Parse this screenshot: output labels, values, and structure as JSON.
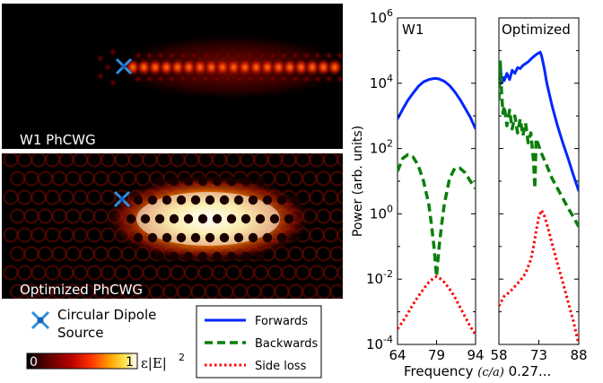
{
  "field_maps": [
    {
      "label": "W1 PhCWG"
    },
    {
      "label": "Optimized PhCWG"
    }
  ],
  "source_legend": {
    "line1": "Circular Dipole",
    "line2": "Source"
  },
  "colorbar": {
    "min": "0",
    "max": "1",
    "label": "ε|E|",
    "exponent": "2",
    "colors": [
      "#000000",
      "#5a0000",
      "#b80000",
      "#ff3300",
      "#ffa000",
      "#ffe24a",
      "#ffffff"
    ]
  },
  "colors": {
    "forwards": "#0026ff",
    "backwards": "#0a7f0a",
    "side_loss": "#ff0000",
    "source": "#2d8fe0"
  },
  "chart_data": [
    {
      "type": "line",
      "title": "W1",
      "ylabel": "Power (arb. units)",
      "yscale": "log",
      "ylim": [
        0.0001,
        1000000
      ],
      "xlim": [
        64,
        94
      ],
      "xticks": [
        "64",
        "79",
        "94"
      ],
      "series": [
        {
          "name": "Forwards",
          "style": "solid",
          "x": [
            64,
            66,
            68,
            70,
            72,
            74,
            76,
            78,
            79,
            80,
            82,
            84,
            86,
            88,
            90,
            92,
            94
          ],
          "y": [
            800,
            1600,
            3000,
            5000,
            8000,
            11000,
            13000,
            14000,
            14000,
            13500,
            11500,
            8500,
            5500,
            3200,
            1700,
            900,
            400
          ]
        },
        {
          "name": "Backwards",
          "style": "dashed",
          "x": [
            64,
            66,
            68,
            70,
            72,
            74,
            76,
            77,
            78,
            78.6,
            79,
            79.4,
            80,
            81,
            82,
            84,
            86,
            88,
            90,
            92,
            94
          ],
          "y": [
            20,
            50,
            65,
            55,
            30,
            10,
            2,
            0.5,
            0.1,
            0.03,
            0.012,
            0.03,
            0.1,
            0.5,
            2,
            12,
            25,
            25,
            18,
            10,
            6
          ]
        },
        {
          "name": "Side loss",
          "style": "dotted",
          "x": [
            64,
            66,
            68,
            70,
            72,
            74,
            76,
            78,
            79,
            80,
            82,
            84,
            86,
            88,
            90,
            92,
            94
          ],
          "y": [
            0.0003,
            0.0005,
            0.0009,
            0.0017,
            0.003,
            0.005,
            0.008,
            0.011,
            0.012,
            0.011,
            0.008,
            0.005,
            0.0028,
            0.0014,
            0.0007,
            0.00035,
            0.0002
          ]
        }
      ]
    },
    {
      "type": "line",
      "title": "Optimized",
      "yscale": "log",
      "ylim": [
        0.0001,
        1000000
      ],
      "xlim": [
        58,
        88
      ],
      "xticks": [
        "58",
        "73",
        "88"
      ],
      "series": [
        {
          "name": "Forwards",
          "style": "solid",
          "x": [
            58,
            58.5,
            59,
            59.5,
            60,
            61,
            62,
            63,
            64,
            65,
            66,
            67,
            68,
            69,
            70,
            71,
            72,
            73,
            73.5,
            74,
            75,
            76,
            78,
            80,
            82,
            84,
            86,
            88
          ],
          "y": [
            15000,
            40000,
            10000,
            15000,
            12000,
            20000,
            13000,
            25000,
            20000,
            30000,
            28000,
            35000,
            40000,
            45000,
            55000,
            65000,
            75000,
            85000,
            90000,
            70000,
            30000,
            10000,
            2000,
            500,
            150,
            50,
            15,
            5
          ]
        },
        {
          "name": "Backwards",
          "style": "dashed",
          "x": [
            58,
            58.5,
            59,
            59.5,
            60,
            61,
            62,
            63,
            64,
            65,
            66,
            67,
            68,
            69,
            70,
            71,
            71.5,
            72,
            73,
            74,
            76,
            78,
            80,
            82,
            84,
            86,
            88
          ],
          "y": [
            3000,
            45000,
            5000,
            1200,
            2000,
            500,
            1500,
            400,
            1000,
            300,
            800,
            250,
            600,
            150,
            300,
            40,
            6,
            200,
            120,
            70,
            30,
            12,
            6,
            3,
            1.5,
            0.8,
            0.4
          ]
        },
        {
          "name": "Side loss",
          "style": "dotted",
          "x": [
            58,
            60,
            62,
            64,
            66,
            68,
            70,
            71,
            72,
            73,
            74,
            75,
            76,
            78,
            80,
            82,
            84,
            86,
            88
          ],
          "y": [
            0.0015,
            0.003,
            0.004,
            0.006,
            0.009,
            0.015,
            0.04,
            0.1,
            0.3,
            0.8,
            1.3,
            0.9,
            0.5,
            0.12,
            0.03,
            0.008,
            0.002,
            0.0005,
            0.0001
          ]
        }
      ]
    }
  ],
  "shared_axis": {
    "xlabel_prefix": "Frequency ",
    "xlabel_unit": "(c/a)",
    "xlabel_suffix": " 0.27...",
    "yticks": [
      {
        "base": "10",
        "exp": "6",
        "value": 1000000
      },
      {
        "base": "10",
        "exp": "4",
        "value": 10000
      },
      {
        "base": "10",
        "exp": "2",
        "value": 100
      },
      {
        "base": "10",
        "exp": "0",
        "value": 1
      },
      {
        "base": "10",
        "exp": "-2",
        "value": 0.01
      },
      {
        "base": "10",
        "exp": "-4",
        "value": 0.0001
      }
    ]
  },
  "line_legend": [
    {
      "label": "Forwards",
      "key": "forwards",
      "style": "solid"
    },
    {
      "label": "Backwards",
      "key": "backwards",
      "style": "dashed"
    },
    {
      "label": "Side loss",
      "key": "side_loss",
      "style": "dotted"
    }
  ]
}
